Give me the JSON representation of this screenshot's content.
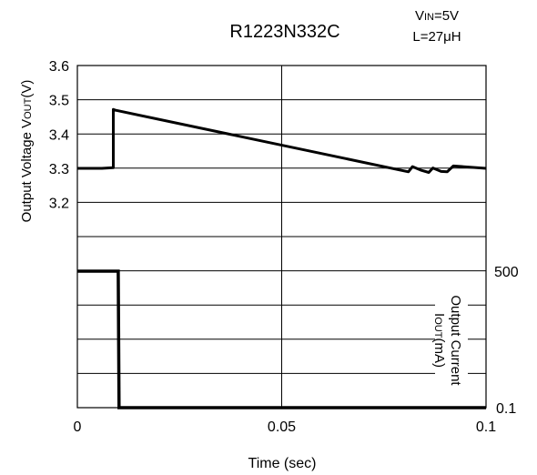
{
  "chart_data": {
    "type": "line",
    "title": "R1223N332C",
    "conditions": [
      "VIN=5V",
      "L=27μH"
    ],
    "xlabel": "Time (sec)",
    "xlim": [
      0,
      0.1
    ],
    "x_ticks": [
      "0",
      "0.05",
      "0.1"
    ],
    "grid": true,
    "top_panel": {
      "ylabel": "Output Voltage VOUT(V)",
      "ylim": [
        3.0,
        3.6
      ],
      "y_ticks": [
        "3.2",
        "3.3",
        "3.4",
        "3.5",
        "3.6"
      ],
      "series": [
        {
          "name": "",
          "x": [
            0,
            0.006,
            0.0088,
            0.0088,
            0.0092,
            0.081,
            0.082,
            0.084,
            0.086,
            0.087,
            0.089,
            0.0905,
            0.092,
            0.1
          ],
          "y": [
            3.3,
            3.3,
            3.302,
            3.472,
            3.47,
            3.29,
            3.305,
            3.295,
            3.288,
            3.301,
            3.291,
            3.29,
            3.307,
            3.3
          ]
        }
      ]
    },
    "bottom_panel": {
      "ylabel": "Output Current IOUT(mA)",
      "y_tick_top": "500",
      "y_tick_bottom": "0.1",
      "series": [
        {
          "name": "",
          "x": [
            0,
            0.01,
            0.0102,
            0.1
          ],
          "y": [
            500,
            500,
            0.1,
            0.1
          ]
        }
      ]
    }
  }
}
